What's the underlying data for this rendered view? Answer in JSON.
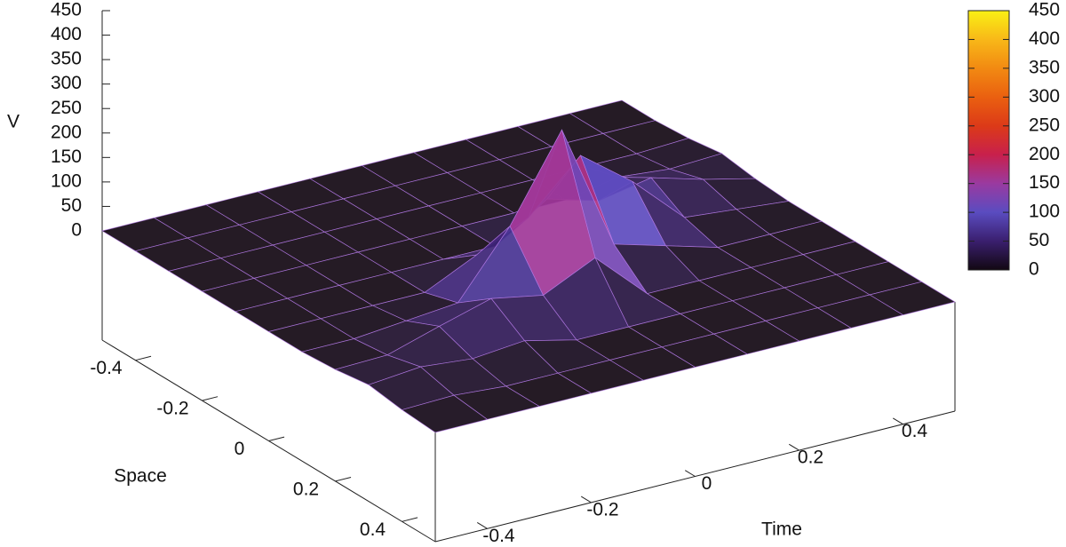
{
  "chart_data": {
    "type": "surface",
    "zlabel": "V",
    "ylabel": "Space",
    "xlabel": "Time",
    "x": [
      -0.5,
      -0.4,
      -0.3,
      -0.2,
      -0.1,
      0,
      0.1,
      0.2,
      0.3,
      0.4,
      0.5
    ],
    "y": [
      -0.5,
      -0.4,
      -0.3,
      -0.2,
      -0.1,
      0,
      0.1,
      0.2,
      0.3,
      0.4,
      0.5
    ],
    "z": [
      [
        0,
        0,
        0,
        0,
        0,
        0,
        0,
        0,
        0,
        0,
        0
      ],
      [
        0,
        0,
        0,
        0,
        0,
        0,
        0,
        0,
        0,
        0,
        0
      ],
      [
        0,
        0,
        0,
        0,
        0,
        0,
        0,
        0,
        0,
        0,
        5
      ],
      [
        0,
        0,
        0,
        0,
        0,
        0,
        0,
        0,
        20,
        10,
        15
      ],
      [
        0,
        0,
        0,
        0,
        0,
        0,
        70,
        40,
        60,
        30,
        5
      ],
      [
        0,
        0,
        0,
        0,
        50,
        100,
        200,
        120,
        20,
        10,
        0
      ],
      [
        0,
        0,
        10,
        20,
        150,
        320,
        60,
        30,
        0,
        0,
        0
      ],
      [
        5,
        8,
        40,
        70,
        50,
        100,
        0,
        0,
        0,
        0,
        0
      ],
      [
        15,
        25,
        15,
        25,
        0,
        0,
        0,
        0,
        0,
        0,
        0
      ],
      [
        5,
        8,
        0,
        0,
        0,
        0,
        0,
        0,
        0,
        0,
        0
      ],
      [
        0,
        0,
        0,
        0,
        0,
        0,
        0,
        0,
        0,
        0,
        0
      ]
    ],
    "xlim": [
      -0.5,
      0.5
    ],
    "xticks": [
      -0.4,
      -0.2,
      0,
      0.2,
      0.4
    ],
    "ylim": [
      -0.5,
      0.5
    ],
    "yticks": [
      -0.4,
      -0.2,
      0,
      0.2,
      0.4
    ],
    "zlim": [
      0,
      450
    ],
    "zticks": [
      0,
      50,
      100,
      150,
      200,
      250,
      300,
      350,
      400,
      450
    ],
    "cblim": [
      0,
      450
    ],
    "cbticks": [
      0,
      50,
      100,
      150,
      200,
      250,
      300,
      350,
      400,
      450
    ],
    "palette": [
      "#120812",
      "#3a1f6e",
      "#5a4cc0",
      "#9a3aa0",
      "#c8204c",
      "#dc3a18",
      "#ea6010",
      "#f28a12",
      "#f8b818",
      "#faf014"
    ],
    "mesh_color": "#b47ae6"
  }
}
